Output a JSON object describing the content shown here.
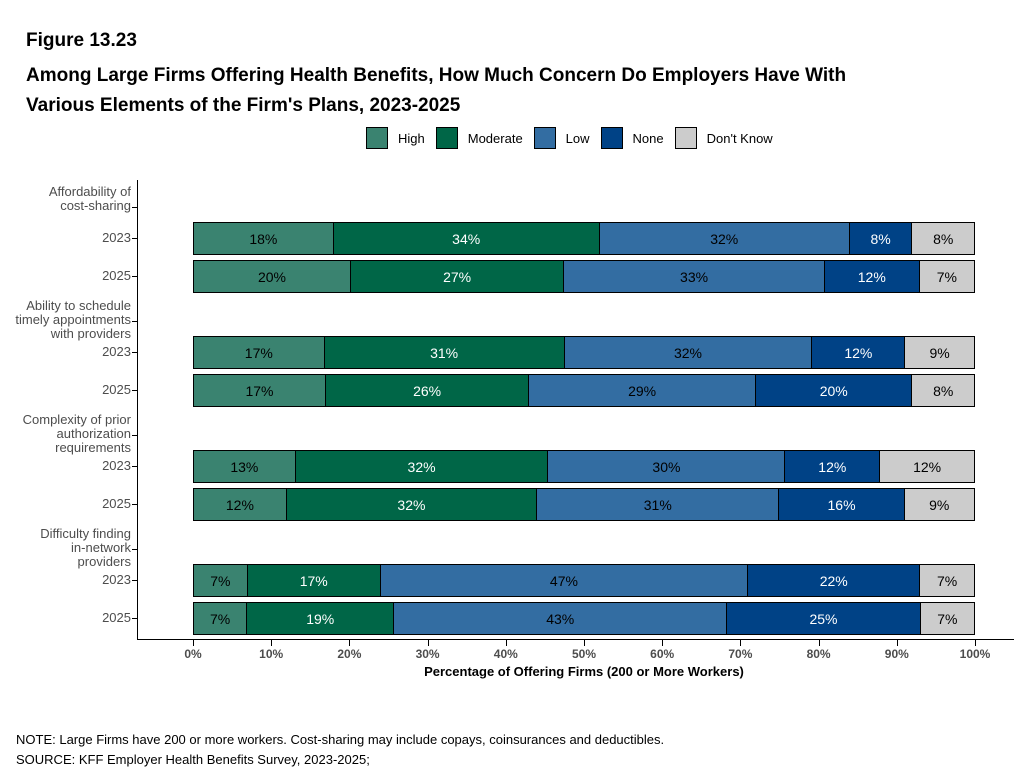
{
  "figure_label": "Figure 13.23",
  "title_line1": "Among Large Firms Offering Health Benefits, How Much Concern Do Employers Have With",
  "title_line2": "Various Elements of the Firm's Plans, 2023-2025",
  "note": "NOTE: Large Firms have 200 or more workers.  Cost-sharing may include copays, coinsurances and deductibles.",
  "source": "SOURCE: KFF Employer Health Benefits Survey, 2023-2025;",
  "colors": {
    "High": "#3a8370",
    "Moderate": "#006647",
    "Low": "#336da2",
    "None": "#004286",
    "Don't Know": "#cccccc"
  },
  "chart_data": {
    "type": "bar",
    "orientation": "horizontal",
    "stacked": true,
    "xlabel": "Percentage of Offering Firms (200 or More Workers)",
    "xlim": [
      0,
      100
    ],
    "x_ticks": [
      "0%",
      "10%",
      "20%",
      "30%",
      "40%",
      "50%",
      "60%",
      "70%",
      "80%",
      "90%",
      "100%"
    ],
    "legend": [
      "High",
      "Moderate",
      "Low",
      "None",
      "Don't Know"
    ],
    "legend_position": "top",
    "groups": [
      {
        "label": [
          "Affordability of",
          "cost-sharing"
        ],
        "rows": [
          {
            "year": "2023",
            "values": [
              18,
              34,
              32,
              8,
              8
            ]
          },
          {
            "year": "2025",
            "values": [
              20,
              27,
              33,
              12,
              7
            ]
          }
        ]
      },
      {
        "label": [
          "Ability to schedule",
          "timely appointments",
          "with providers"
        ],
        "rows": [
          {
            "year": "2023",
            "values": [
              17,
              31,
              32,
              12,
              9
            ]
          },
          {
            "year": "2025",
            "values": [
              17,
              26,
              29,
              20,
              8
            ]
          }
        ]
      },
      {
        "label": [
          "Complexity of prior",
          "authorization",
          "requirements"
        ],
        "rows": [
          {
            "year": "2023",
            "values": [
              13,
              32,
              30,
              12,
              12
            ]
          },
          {
            "year": "2025",
            "values": [
              12,
              32,
              31,
              16,
              9
            ]
          }
        ]
      },
      {
        "label": [
          "Difficulty finding",
          "in-network",
          "providers"
        ],
        "rows": [
          {
            "year": "2023",
            "values": [
              7,
              17,
              47,
              22,
              7
            ]
          },
          {
            "year": "2025",
            "values": [
              7,
              19,
              43,
              25,
              7
            ]
          }
        ]
      }
    ]
  }
}
